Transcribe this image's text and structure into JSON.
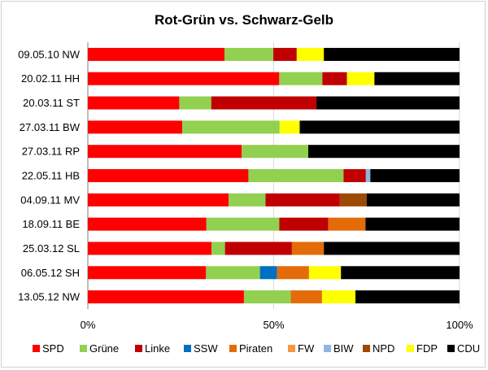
{
  "chart_data": {
    "type": "bar",
    "orientation": "horizontal",
    "stacked": true,
    "title": "Rot-Grün vs. Schwarz-Gelb",
    "xlabel": "",
    "ylabel": "",
    "xlim": [
      0,
      100
    ],
    "xticks": [
      "0%",
      "50%",
      "100%"
    ],
    "legend_position": "bottom",
    "categories": [
      "09.05.10 NW",
      "20.02.11 HH",
      "20.03.11 ST",
      "27.03.11 BW",
      "27.03.11 RP",
      "22.05.11 HB",
      "04.09.11 MV",
      "18.09.11 BE",
      "25.03.12 SL",
      "06.05.12 SH",
      "13.05.12 NW"
    ],
    "series": [
      {
        "name": "SPD",
        "color": "#ff0000",
        "values": [
          36.8,
          51.5,
          24.6,
          25.4,
          41.4,
          43.2,
          37.9,
          31.9,
          33.3,
          31.8,
          42.0
        ]
      },
      {
        "name": "Grüne",
        "color": "#92d050",
        "values": [
          13.1,
          11.6,
          8.6,
          26.2,
          17.9,
          25.6,
          9.9,
          19.6,
          3.6,
          14.5,
          12.6
        ]
      },
      {
        "name": "Linke",
        "color": "#c00000",
        "values": [
          6.3,
          6.6,
          28.3,
          0,
          0,
          6.0,
          20.0,
          13.2,
          18.0,
          0,
          0
        ]
      },
      {
        "name": "SSW",
        "color": "#0070c0",
        "values": [
          0,
          0,
          0,
          0,
          0,
          0,
          0,
          0,
          0,
          4.6,
          0
        ]
      },
      {
        "name": "Piraten",
        "color": "#e36c09",
        "values": [
          0,
          0,
          0,
          0,
          0,
          0,
          0,
          10.0,
          8.6,
          8.6,
          8.4
        ]
      },
      {
        "name": "FW",
        "color": "#f79646",
        "values": [
          0,
          0,
          0,
          0,
          0,
          0,
          0,
          0,
          0,
          0,
          0
        ]
      },
      {
        "name": "BIW",
        "color": "#8eb4e3",
        "values": [
          0,
          0,
          0,
          0,
          0,
          1.2,
          0,
          0,
          0,
          0,
          0
        ]
      },
      {
        "name": "NPD",
        "color": "#9c4a06",
        "values": [
          0,
          0,
          0,
          0,
          0,
          0,
          7.2,
          0,
          0,
          0,
          0
        ]
      },
      {
        "name": "FDP",
        "color": "#ffff00",
        "values": [
          7.3,
          7.4,
          0,
          5.4,
          0,
          0,
          0,
          0,
          0,
          8.6,
          9.0
        ]
      },
      {
        "name": "CDU",
        "color": "#000000",
        "values": [
          36.5,
          22.9,
          38.5,
          43.0,
          40.7,
          24.0,
          25.0,
          25.3,
          36.5,
          31.9,
          28.0
        ]
      }
    ]
  }
}
